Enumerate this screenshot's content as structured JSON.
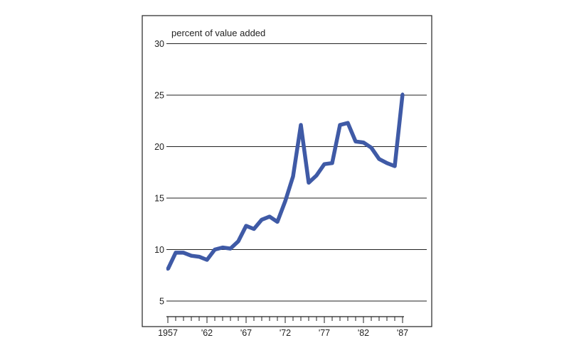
{
  "chart_data": {
    "type": "line",
    "title": "",
    "xlabel": "",
    "ylabel": "percent of value added",
    "ylim": [
      3.5,
      30
    ],
    "xlim": [
      1957,
      1987.8
    ],
    "grid": true,
    "colors": {
      "line": "#3f5aa6",
      "axis": "#222222",
      "grid": "#222222"
    },
    "y_ticks": [
      5,
      10,
      15,
      20,
      25,
      30
    ],
    "y_tick_labels": [
      "5",
      "10",
      "15",
      "20",
      "25",
      "30"
    ],
    "x_ticks": [
      1957,
      1962,
      1967,
      1972,
      1977,
      1982,
      1987
    ],
    "x_tick_labels": [
      "1957",
      "'62",
      "'67",
      "'72",
      "'77",
      "'82",
      "'87"
    ],
    "x_minor_ticks": [
      1957,
      1958,
      1959,
      1960,
      1961,
      1962,
      1963,
      1964,
      1965,
      1966,
      1967,
      1968,
      1969,
      1970,
      1971,
      1972,
      1973,
      1974,
      1975,
      1976,
      1977,
      1978,
      1979,
      1980,
      1981,
      1982,
      1983,
      1984,
      1985,
      1986,
      1987
    ],
    "series": [
      {
        "x": [
          1957,
          1958,
          1959,
          1960,
          1961,
          1962,
          1963,
          1964,
          1965,
          1966,
          1967,
          1968,
          1969,
          1970,
          1971,
          1972,
          1973,
          1974,
          1975,
          1976,
          1977,
          1978,
          1979,
          1980,
          1981,
          1982,
          1983,
          1984,
          1985,
          1986,
          1987
        ],
        "values": [
          8.1,
          9.7,
          9.7,
          9.4,
          9.3,
          9.0,
          10.0,
          10.2,
          10.1,
          10.8,
          12.3,
          12.0,
          12.9,
          13.2,
          12.7,
          14.7,
          17.1,
          22.1,
          16.5,
          17.2,
          18.3,
          18.4,
          22.1,
          22.3,
          20.5,
          20.4,
          19.9,
          18.8,
          18.4,
          18.1,
          25.1
        ]
      }
    ]
  }
}
